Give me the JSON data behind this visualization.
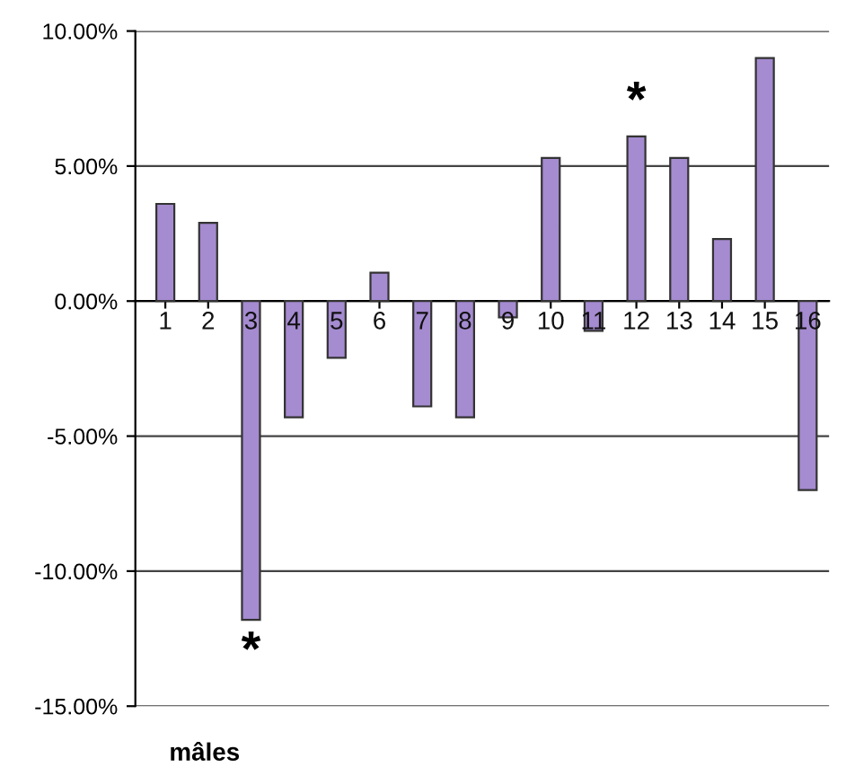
{
  "chart_data": {
    "type": "bar",
    "xlabel": "mâles",
    "categories": [
      "1",
      "2",
      "3",
      "4",
      "5",
      "6",
      "7",
      "8",
      "9",
      "10",
      "11",
      "12",
      "13",
      "14",
      "15",
      "16"
    ],
    "values": [
      3.6,
      2.9,
      -11.8,
      -4.3,
      -2.1,
      1.05,
      -3.9,
      -4.3,
      -0.6,
      5.3,
      -1.1,
      6.1,
      5.3,
      2.3,
      9.0,
      -7.0
    ],
    "color": "#a58bd0",
    "ylim": [
      -15,
      10
    ],
    "yticks": [
      {
        "value": 10,
        "label": "10.00%"
      },
      {
        "value": 5,
        "label": "5.00%"
      },
      {
        "value": 0,
        "label": "0.00%"
      },
      {
        "value": -5,
        "label": "-5.00%"
      },
      {
        "value": -10,
        "label": "-10.00%"
      },
      {
        "value": -15,
        "label": "-15.00%"
      }
    ],
    "grid": "y",
    "annotations": [
      {
        "text": "*",
        "x": "3",
        "y": -11.8
      },
      {
        "text": "*",
        "x": "12",
        "y": 6.1
      }
    ]
  }
}
